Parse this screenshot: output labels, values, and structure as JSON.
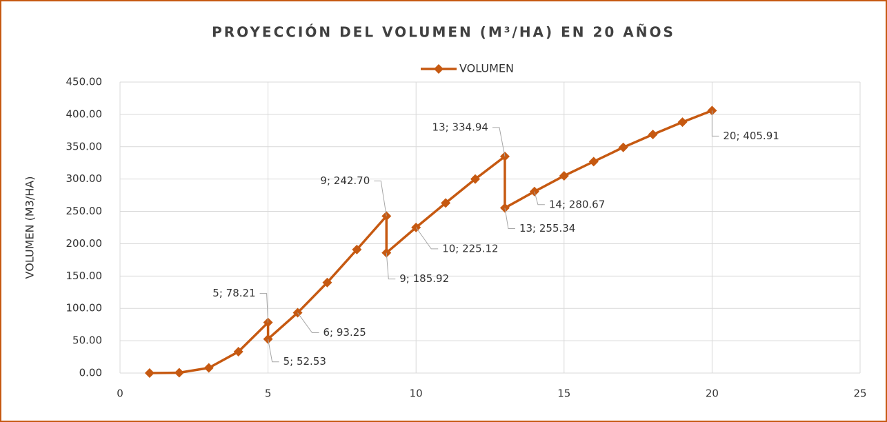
{
  "chart_data": {
    "type": "line",
    "title": "PROYECCIÓN DEL VOLUMEN (M³/HA) EN 20 AÑOS",
    "y_label": "VOLUMEN (M3/HA)",
    "x": [
      1,
      2,
      3,
      4,
      5,
      5,
      6,
      7,
      8,
      9,
      9,
      10,
      11,
      12,
      13,
      13,
      14,
      15,
      16,
      17,
      18,
      19,
      20
    ],
    "series": [
      {
        "name": "VOLUMEN",
        "color": "#c65911",
        "values": [
          0,
          0.5,
          8,
          33,
          78.21,
          52.53,
          93.25,
          140,
          191,
          242.7,
          185.92,
          225.12,
          263,
          300,
          334.94,
          255.34,
          280.67,
          305,
          327,
          349,
          369,
          388,
          405.91
        ],
        "value_labels": [
          null,
          null,
          null,
          null,
          "5; 78.21",
          "5; 52.53",
          "6; 93.25",
          null,
          null,
          "9; 242.70",
          "9; 185.92",
          "10; 225.12",
          null,
          null,
          "13; 334.94",
          "13; 255.34",
          "14; 280.67",
          null,
          null,
          null,
          null,
          null,
          "20; 405.91"
        ]
      }
    ],
    "xlim": [
      0,
      25
    ],
    "xticks": [
      0,
      5,
      10,
      15,
      20,
      25
    ],
    "ylim": [
      0,
      450
    ],
    "yticks": [
      {
        "value": 0,
        "label": "0.00"
      },
      {
        "value": 50,
        "label": "50.00"
      },
      {
        "value": 100,
        "label": "100.00"
      },
      {
        "value": 150,
        "label": "150.00"
      },
      {
        "value": 200,
        "label": "200.00"
      },
      {
        "value": 250,
        "label": "250.00"
      },
      {
        "value": 300,
        "label": "300.00"
      },
      {
        "value": 350,
        "label": "350.00"
      },
      {
        "value": 400,
        "label": "400.00"
      },
      {
        "value": 450,
        "label": "450.00"
      }
    ],
    "grid": true,
    "legend": "top"
  }
}
